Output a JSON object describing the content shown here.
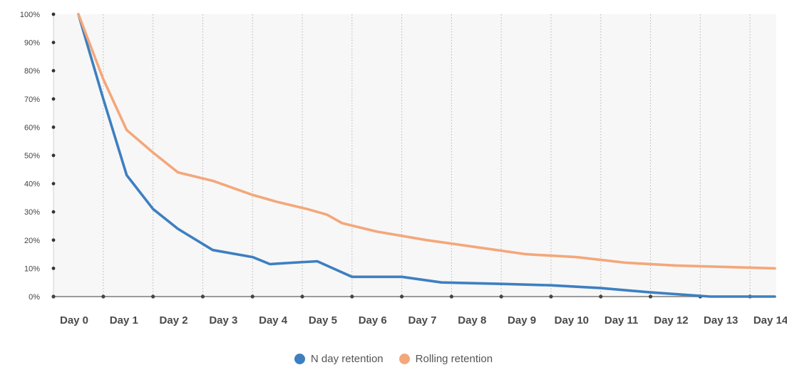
{
  "chart_data": {
    "type": "line",
    "categories": [
      "Day 0",
      "Day 1",
      "Day 2",
      "Day 3",
      "Day 4",
      "Day 5",
      "Day 6",
      "Day 7",
      "Day 8",
      "Day 9",
      "Day 10",
      "Day 11",
      "Day 12",
      "Day 13",
      "Day 14"
    ],
    "y_tick_labels": [
      "0%",
      "10%",
      "20%",
      "30%",
      "40%",
      "50%",
      "60%",
      "70%",
      "80%",
      "90%",
      "100%"
    ],
    "ylim": [
      0,
      100
    ],
    "grid": "vertical dotted",
    "legend_position": "bottom",
    "series": [
      {
        "name": "N day retention",
        "color": "#3d7fc1",
        "points": [
          {
            "x": 0.0,
            "y": 100
          },
          {
            "x": 0.5,
            "y": 70
          },
          {
            "x": 0.97,
            "y": 43
          },
          {
            "x": 1.5,
            "y": 31
          },
          {
            "x": 2.0,
            "y": 24
          },
          {
            "x": 2.7,
            "y": 16.5
          },
          {
            "x": 3.5,
            "y": 14
          },
          {
            "x": 3.85,
            "y": 11.5
          },
          {
            "x": 4.3,
            "y": 12
          },
          {
            "x": 4.8,
            "y": 12.5
          },
          {
            "x": 5.5,
            "y": 7
          },
          {
            "x": 6.0,
            "y": 7
          },
          {
            "x": 6.5,
            "y": 7
          },
          {
            "x": 7.3,
            "y": 5
          },
          {
            "x": 8.5,
            "y": 4.5
          },
          {
            "x": 9.5,
            "y": 4
          },
          {
            "x": 10.5,
            "y": 3
          },
          {
            "x": 11.5,
            "y": 1.5
          },
          {
            "x": 12.7,
            "y": 0
          },
          {
            "x": 13.5,
            "y": 0
          },
          {
            "x": 14.0,
            "y": 0
          }
        ]
      },
      {
        "name": "Rolling retention",
        "color": "#f4a77a",
        "points": [
          {
            "x": 0.0,
            "y": 100
          },
          {
            "x": 0.5,
            "y": 77
          },
          {
            "x": 0.97,
            "y": 59
          },
          {
            "x": 1.5,
            "y": 51
          },
          {
            "x": 2.0,
            "y": 44
          },
          {
            "x": 2.7,
            "y": 41
          },
          {
            "x": 3.5,
            "y": 36
          },
          {
            "x": 4.0,
            "y": 33.5
          },
          {
            "x": 4.6,
            "y": 31
          },
          {
            "x": 5.0,
            "y": 29
          },
          {
            "x": 5.3,
            "y": 26
          },
          {
            "x": 6.0,
            "y": 23
          },
          {
            "x": 7.0,
            "y": 20
          },
          {
            "x": 8.0,
            "y": 17.5
          },
          {
            "x": 9.0,
            "y": 15
          },
          {
            "x": 10.0,
            "y": 14
          },
          {
            "x": 11.0,
            "y": 12
          },
          {
            "x": 12.0,
            "y": 11
          },
          {
            "x": 13.0,
            "y": 10.5
          },
          {
            "x": 14.0,
            "y": 10
          }
        ]
      }
    ]
  }
}
